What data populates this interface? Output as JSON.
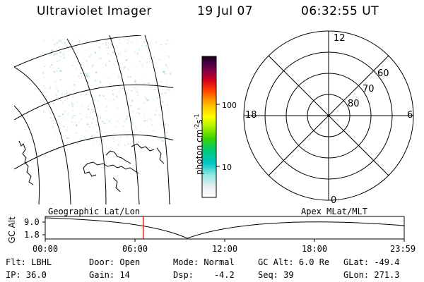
{
  "header": {
    "title": "Ultraviolet Imager",
    "date": "19 Jul 07",
    "time": "06:32:55 UT"
  },
  "colorbar": {
    "label": "photon cm-2s-1",
    "ticks": [
      "100",
      "10"
    ]
  },
  "polar": {
    "mlt_labels": {
      "top": "12",
      "bottom": "0",
      "left": "18",
      "right": "6"
    },
    "lat_labels": [
      "60",
      "70",
      "80"
    ]
  },
  "timeline": {
    "left_title": "Geographic Lat/Lon",
    "right_title": "Apex MLat/MLT",
    "axis_label": "GC Alt",
    "y_top": "9.0",
    "y_bottom": "1.8",
    "x_ticks": [
      "00:00",
      "06:00",
      "12:00",
      "18:00",
      "23:59"
    ],
    "marker_time_hours": 6.55
  },
  "footer": {
    "rows": [
      [
        {
          "label": "Flt:",
          "value": "LBHL"
        },
        {
          "label": "Door:",
          "value": "Open"
        },
        {
          "label": "Mode:",
          "value": "Normal"
        },
        {
          "label": "GC Alt:",
          "value": "6.0 Re"
        },
        {
          "label": "GLat:",
          "value": "-49.4"
        }
      ],
      [
        {
          "label": "IP:",
          "value": "36.0"
        },
        {
          "label": "Gain:",
          "value": "14"
        },
        {
          "label": "Dsp:",
          "value": "-4.2"
        },
        {
          "label": "Seq:",
          "value": "39"
        },
        {
          "label": "GLon:",
          "value": "271.3"
        }
      ]
    ]
  },
  "colors": {
    "marker": "#d00000",
    "speckle": "#7fc9b8"
  }
}
